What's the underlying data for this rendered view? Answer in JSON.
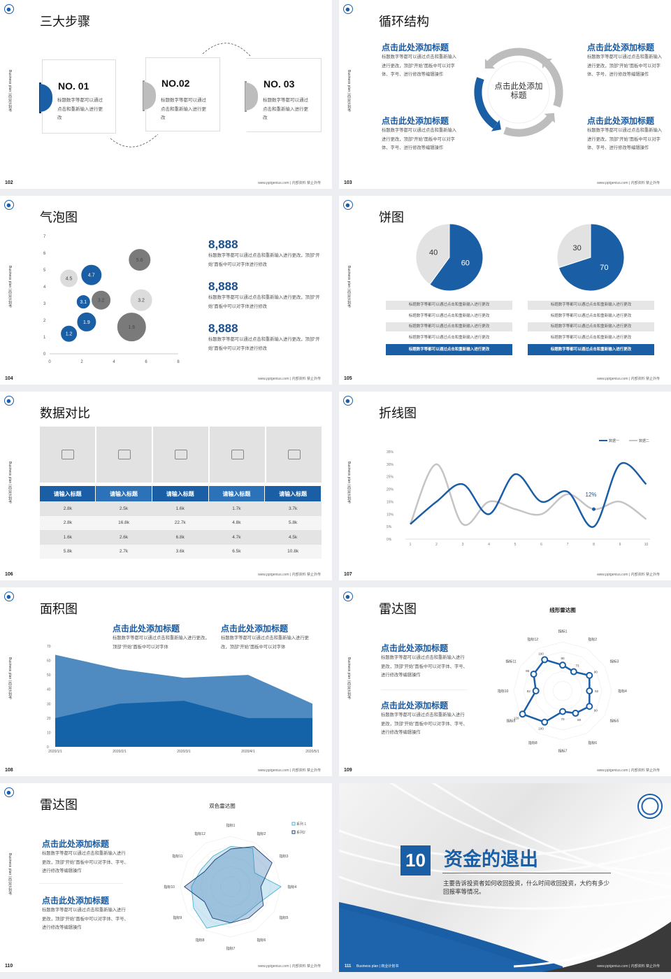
{
  "common": {
    "side_label": "Business plan | 商业计划书",
    "footer": "www.pptgenius.com | 内部资料 禁止外传"
  },
  "colors": {
    "brand_blue": "#1a5ea6",
    "gray": "#bdbdbd",
    "light_gray": "#e2e2e2",
    "dark_gray": "#7a7a7a",
    "background": "#eceef1"
  },
  "s102": {
    "page": "102",
    "title": "三大步骤",
    "steps": [
      {
        "no": "NO. 01",
        "desc": "标题数字等都可以通过点击和重新输入进行更改"
      },
      {
        "no": "NO.02",
        "desc": "标题数字等都可以通过点击和重新输入进行更改"
      },
      {
        "no": "NO. 03",
        "desc": "标题数字等都可以通过点击和重新输入进行更改"
      }
    ]
  },
  "s103": {
    "page": "103",
    "title": "循环结构",
    "center": "点击此处添加标题",
    "blocks": [
      {
        "heading": "点击此处添加标题",
        "desc": "标题数字等都可以通过点击和重新输入进行更改，顶部“开始”面板中可以对字体、字号、进行修改等编辑操作"
      },
      {
        "heading": "点击此处添加标题",
        "desc": "标题数字等都可以通过点击和重新输入进行更改，顶部“开始”面板中可以对字体、字号、进行修改等编辑操作"
      },
      {
        "heading": "点击此处添加标题",
        "desc": "标题数字等都可以通过点击和重新输入进行更改，顶部“开始”面板中可以对字体、字号、进行修改等编辑操作"
      },
      {
        "heading": "点击此处添加标题",
        "desc": "标题数字等都可以通过点击和重新输入进行更改，顶部“开始”面板中可以对字体、字号、进行修改等编辑操作"
      }
    ]
  },
  "s104": {
    "page": "104",
    "title": "气泡图",
    "stats": [
      {
        "value": "8,888",
        "desc": "标题数字等都可以通过点击和重新输入进行更改，顶部“开始”面板中可以对字体进行修改"
      },
      {
        "value": "8,888",
        "desc": "标题数字等都可以通过点击和重新输入进行更改，顶部“开始”面板中可以对字体进行修改"
      },
      {
        "value": "8,888",
        "desc": "标题数字等都可以通过点击和重新输入进行更改，顶部“开始”面板中可以对字体进行修改"
      }
    ]
  },
  "s105": {
    "page": "105",
    "title": "饼图",
    "rows_left": [
      "标题数字等都可以通过点击和重新输入进行更改",
      "标题数字等都可以通过点击和重新输入进行更改",
      "标题数字等都可以通过点击和重新输入进行更改",
      "标题数字等都可以通过点击和重新输入进行更改",
      "标题数字等都可以通过点击和重新输入进行更改"
    ],
    "rows_right": [
      "标题数字等都可以通过点击和重新输入进行更改",
      "标题数字等都可以通过点击和重新输入进行更改",
      "标题数字等都可以通过点击和重新输入进行更改",
      "标题数字等都可以通过点击和重新输入进行更改",
      "标题数字等都可以通过点击和重新输入进行更改"
    ]
  },
  "s106": {
    "page": "106",
    "title": "数据对比",
    "headers": [
      "请输入标题",
      "请输入标题",
      "请输入标题",
      "请输入标题",
      "请输入标题"
    ],
    "rows": [
      [
        "2.8k",
        "2.5k",
        "1.6k",
        "1.7k",
        "3.7k"
      ],
      [
        "2.8k",
        "16.8k",
        "22.7k",
        "4.8k",
        "5.8k"
      ],
      [
        "1.6k",
        "2.6k",
        "6.8k",
        "4.7k",
        "4.5k"
      ],
      [
        "5.8k",
        "2.7k",
        "3.6k",
        "6.5k",
        "10.8k"
      ]
    ]
  },
  "s107": {
    "page": "107",
    "title": "折线图"
  },
  "s108": {
    "page": "108",
    "title": "面积图",
    "blocks": [
      {
        "heading": "点击此处添加标题",
        "desc": "标题数字等都可以通过点击和重新输入进行更改，顶部“开始”面板中可以对字体"
      },
      {
        "heading": "点击此处添加标题",
        "desc": "标题数字等都可以通过点击和重新输入进行更改，顶部“开始”面板中可以对字体"
      }
    ]
  },
  "s109": {
    "page": "109",
    "title": "雷达图",
    "blocks": [
      {
        "heading": "点击此处添加标题",
        "desc": "标题数字等都可以通过点击和重新输入进行更改，顶部“开始”面板中可以对字体、字号、进行修改等编辑操作"
      },
      {
        "heading": "点击此处添加标题",
        "desc": "标题数字等都可以通过点击和重新输入进行更改，顶部“开始”面板中可以对字体、字号、进行修改等编辑操作"
      }
    ]
  },
  "s110": {
    "page": "110",
    "title": "雷达图",
    "blocks": [
      {
        "heading": "点击此处添加标题",
        "desc": "标题数字等都可以通过点击和重新输入进行更改，顶部“开始”面板中可以对字体、字号、进行修改等编辑操作"
      },
      {
        "heading": "点击此处添加标题",
        "desc": "标题数字等都可以通过点击和重新输入进行更改，顶部“开始”面板中可以对字体、字号、进行修改等编辑操作"
      }
    ]
  },
  "s111": {
    "page": "111",
    "number": "10",
    "title": "资金的退出",
    "desc": "主要告诉投资者如何收回投资，什么时间收回投资，大约有多少回报率等情况。",
    "footer_left": "Business plan | 商业计划书"
  },
  "chart_data": [
    {
      "type": "scatter",
      "variant": "bubble",
      "xlim": [
        0,
        8
      ],
      "ylim": [
        0,
        7
      ],
      "xticks": [
        0,
        2,
        4,
        6,
        8
      ],
      "yticks": [
        0,
        1,
        2,
        3,
        4,
        5,
        6,
        7
      ],
      "points": [
        {
          "x": 1.2,
          "y": 1.2,
          "size": 12,
          "label": "1.2",
          "color": "#1a5ea6"
        },
        {
          "x": 2.3,
          "y": 1.9,
          "size": 14,
          "label": "1.9",
          "color": "#1a5ea6"
        },
        {
          "x": 2.1,
          "y": 3.1,
          "size": 10,
          "label": "3.1",
          "color": "#1a5ea6"
        },
        {
          "x": 3.2,
          "y": 3.2,
          "size": 14,
          "label": "3.2",
          "color": "#7a7a7a"
        },
        {
          "x": 1.2,
          "y": 4.5,
          "size": 13,
          "label": "4.5",
          "color": "#dcdcdc"
        },
        {
          "x": 2.6,
          "y": 4.7,
          "size": 15,
          "label": "4.7",
          "color": "#1a5ea6"
        },
        {
          "x": 5.6,
          "y": 5.6,
          "size": 16,
          "label": "5.6",
          "color": "#7a7a7a"
        },
        {
          "x": 5.7,
          "y": 3.2,
          "size": 16,
          "label": "3.2",
          "color": "#dcdcdc"
        },
        {
          "x": 5.1,
          "y": 1.6,
          "size": 21,
          "label": "1.6",
          "color": "#7a7a7a"
        }
      ]
    },
    {
      "type": "pie",
      "values": [
        40,
        60
      ],
      "labels": [
        "40",
        "60"
      ],
      "colors": [
        "#e2e2e2",
        "#1a5ea6"
      ]
    },
    {
      "type": "pie",
      "values": [
        30,
        70
      ],
      "labels": [
        "30",
        "70"
      ],
      "colors": [
        "#e2e2e2",
        "#1a5ea6"
      ]
    },
    {
      "type": "line",
      "x": [
        1,
        2,
        3,
        4,
        5,
        6,
        7,
        8,
        9,
        10
      ],
      "ylim": [
        0,
        35
      ],
      "yticks": [
        "0%",
        "5%",
        "10%",
        "15%",
        "20%",
        "25%",
        "30%",
        "35%"
      ],
      "legend": "top-right",
      "series": [
        {
          "name": "数据一",
          "values": [
            6,
            15,
            22,
            10,
            26,
            15,
            19,
            5,
            30,
            22
          ],
          "color": "#1a5ea6"
        },
        {
          "name": "数据二",
          "values": [
            6,
            30,
            6,
            15,
            12,
            10,
            18,
            12,
            15,
            8
          ],
          "color": "#c4c4c4"
        }
      ],
      "annotation": {
        "x": 8,
        "y": 12,
        "label": "12%"
      }
    },
    {
      "type": "area",
      "categories": [
        "2020/1/1",
        "2020/2/1",
        "2020/3/1",
        "2020/4/1",
        "2020/5/1"
      ],
      "ylim": [
        0,
        70
      ],
      "yticks": [
        0,
        10,
        20,
        30,
        40,
        50,
        60,
        70
      ],
      "series": [
        {
          "values": [
            64,
            54,
            48,
            50,
            30
          ],
          "color": "#4f8bc1"
        },
        {
          "values": [
            20,
            30,
            32,
            20,
            20
          ],
          "color": "#1462a8"
        }
      ]
    },
    {
      "type": "radar",
      "title": "线形雷达图",
      "categories": [
        "指标1",
        "指标2",
        "指标3",
        "指标4",
        "指标5",
        "指标6",
        "指标7",
        "指标8",
        "指标9",
        "指标10",
        "指标11",
        "指标12"
      ],
      "values": [
        80,
        73,
        90,
        82,
        90,
        80,
        70,
        100,
        120,
        82,
        95,
        100
      ],
      "color": "#1a5ea6"
    },
    {
      "type": "radar",
      "title": "双色雷达图",
      "legend": "top-right",
      "categories": [
        "指标1",
        "指标2",
        "指标3",
        "指标4",
        "指标5",
        "指标6",
        "指标7",
        "指标8",
        "指标9",
        "指标10",
        "指标11",
        "指标12"
      ],
      "series": [
        {
          "name": "系列 1",
          "values": [
            80,
            88,
            55,
            100,
            65,
            62,
            72,
            95,
            85,
            78,
            68,
            70
          ],
          "color": "#49b3cf"
        },
        {
          "name": "系列2",
          "values": [
            75,
            92,
            95,
            60,
            75,
            72,
            72,
            72,
            60,
            92,
            60,
            62
          ],
          "color": "#1b3f73"
        }
      ]
    }
  ]
}
